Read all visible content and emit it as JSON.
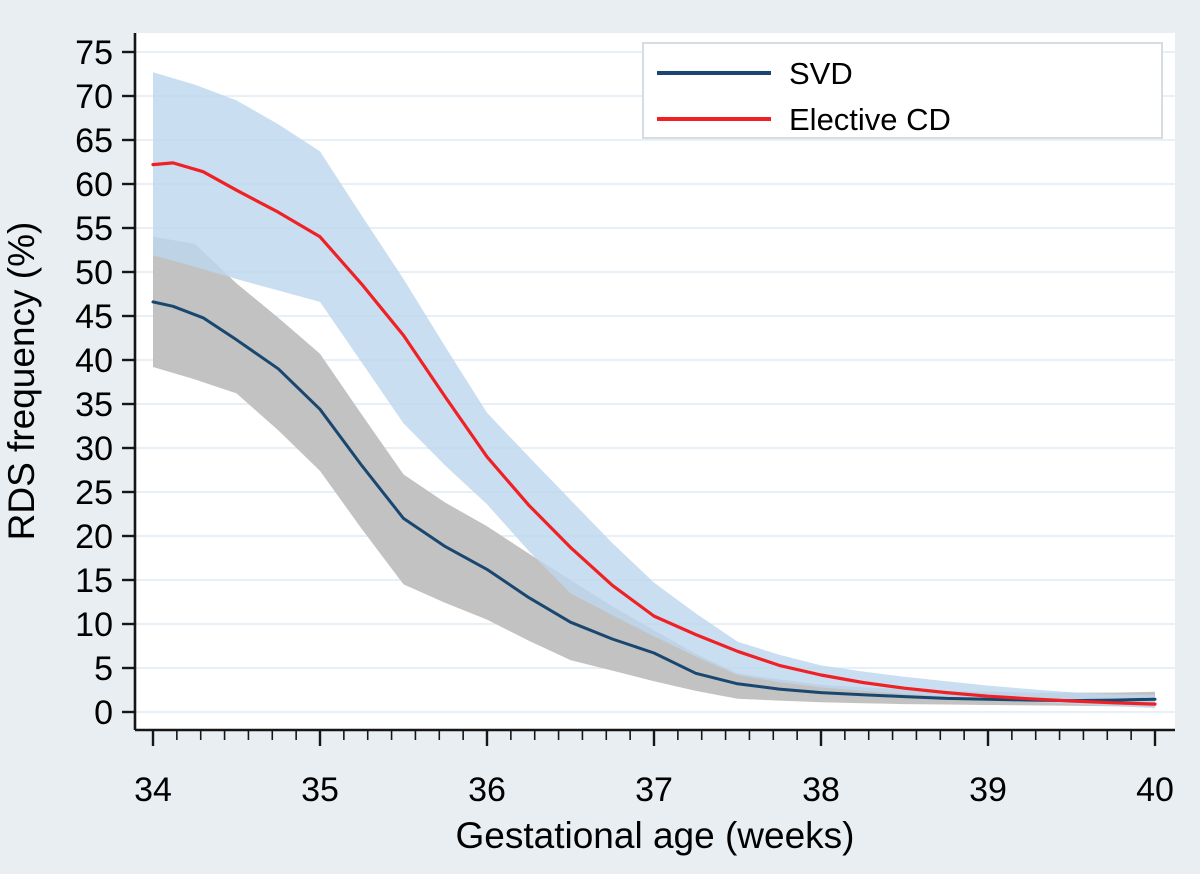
{
  "figure": {
    "background": "#e8eef2",
    "plot_background": "#ffffff",
    "grid_color": "#dfebf3",
    "axis_color": "#161616"
  },
  "legend": {
    "items": [
      {
        "label": "SVD",
        "color": "#1a476f"
      },
      {
        "label": "Elective CD",
        "color": "#ef2125"
      }
    ]
  },
  "chart_data": {
    "type": "line",
    "title": "",
    "xlabel": "Gestational age (weeks)",
    "ylabel": "RDS frequency (%)",
    "xlim": [
      34,
      40
    ],
    "ylim": [
      0,
      75
    ],
    "grid": "horizontal",
    "legend_position": "top-right",
    "x_major_ticks": [
      34,
      35,
      36,
      37,
      38,
      39,
      40
    ],
    "x_minor_ticks_per_week": 7,
    "y_ticks": [
      0,
      5,
      10,
      15,
      20,
      25,
      30,
      35,
      40,
      45,
      50,
      55,
      60,
      65,
      70,
      75
    ],
    "x": [
      34,
      34.12,
      34.3,
      34.5,
      34.75,
      35,
      35.25,
      35.5,
      35.75,
      36,
      36.25,
      36.5,
      36.75,
      37,
      37.25,
      37.5,
      37.75,
      38,
      38.25,
      38.5,
      38.75,
      39,
      39.25,
      39.5,
      39.75,
      40
    ],
    "series": [
      {
        "name": "SVD",
        "color": "#1a476f",
        "line_width": 3,
        "y": [
          46.6,
          46.1,
          44.8,
          42.3,
          39.0,
          34.4,
          28.0,
          22.0,
          18.8,
          16.2,
          13.0,
          10.2,
          8.3,
          6.7,
          4.4,
          3.2,
          2.6,
          2.2,
          1.95,
          1.75,
          1.55,
          1.45,
          1.35,
          1.3,
          1.35,
          1.45
        ],
        "ci_band": {
          "color": "#c2c2c2",
          "opacity": 1,
          "x": [
            34,
            34.25,
            34.5,
            34.75,
            35,
            35.25,
            35.5,
            35.75,
            36,
            36.25,
            36.5,
            36.75,
            37,
            37.25,
            37.5,
            37.75,
            38,
            38.25,
            38.5,
            38.75,
            39,
            39.25,
            39.5,
            39.75,
            40
          ],
          "lower": [
            39.2,
            37.8,
            36.2,
            32.0,
            27.4,
            20.8,
            14.5,
            12.4,
            10.5,
            8.1,
            5.9,
            4.7,
            3.5,
            2.4,
            1.5,
            1.3,
            1.1,
            1.0,
            0.9,
            0.85,
            0.8,
            0.75,
            0.7,
            0.65,
            0.6
          ],
          "upper": [
            54.0,
            53.2,
            48.7,
            44.8,
            40.7,
            33.8,
            27.0,
            23.8,
            21.1,
            18.0,
            15.0,
            12.0,
            9.3,
            6.6,
            4.4,
            3.7,
            3.1,
            2.8,
            2.6,
            2.4,
            2.3,
            2.2,
            2.2,
            2.2,
            2.3
          ]
        }
      },
      {
        "name": "Elective CD",
        "color": "#ef2125",
        "line_width": 3.2,
        "y": [
          62.2,
          62.4,
          61.4,
          59.3,
          56.8,
          54.0,
          48.6,
          42.8,
          35.8,
          29.0,
          23.5,
          18.7,
          14.4,
          10.9,
          8.8,
          6.9,
          5.3,
          4.2,
          3.35,
          2.7,
          2.2,
          1.8,
          1.5,
          1.25,
          1.05,
          0.9
        ],
        "ci_band": {
          "color": "#bdd7ed",
          "opacity": 0.82,
          "x": [
            34,
            34.25,
            34.5,
            34.75,
            35,
            35.25,
            35.5,
            35.75,
            36,
            36.25,
            36.5,
            36.75,
            37,
            37.25,
            37.5,
            37.75,
            38,
            38.25,
            38.5,
            38.75,
            39,
            39.25,
            39.5,
            39.75,
            40
          ],
          "lower": [
            51.9,
            50.6,
            49.2,
            47.9,
            46.6,
            39.7,
            32.8,
            28.0,
            23.6,
            18.3,
            13.5,
            11.0,
            8.6,
            6.3,
            4.2,
            3.4,
            2.8,
            2.4,
            2.05,
            1.75,
            1.45,
            1.15,
            0.9,
            0.65,
            0.45
          ],
          "upper": [
            72.7,
            71.3,
            69.5,
            66.8,
            63.7,
            56.4,
            49.2,
            41.5,
            34.0,
            29.0,
            24.1,
            19.2,
            14.7,
            11.2,
            8.0,
            6.5,
            5.3,
            4.6,
            4.0,
            3.5,
            3.0,
            2.6,
            2.25,
            2.0,
            1.9
          ]
        }
      }
    ]
  }
}
